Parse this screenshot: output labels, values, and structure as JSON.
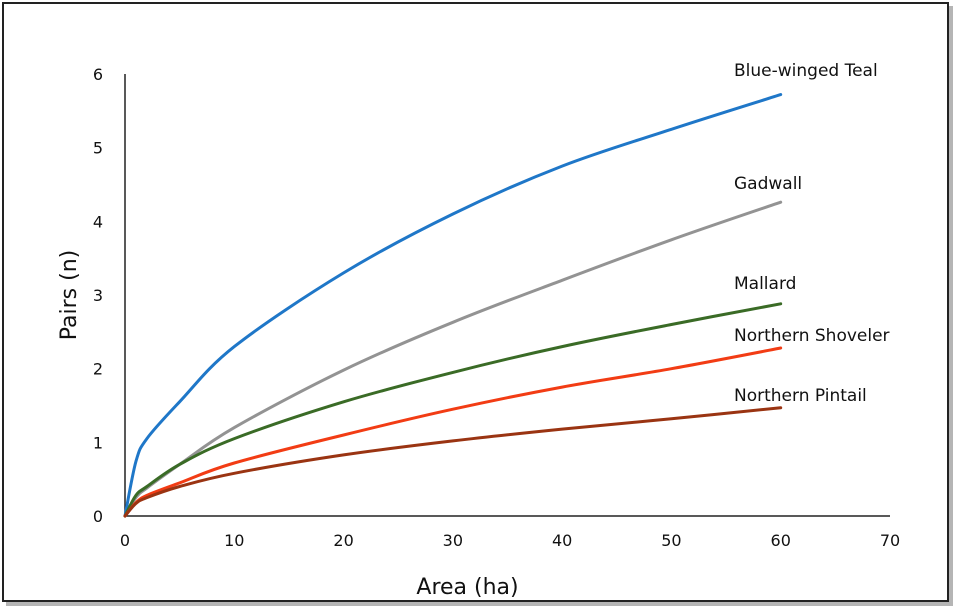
{
  "chart_data": {
    "type": "line",
    "title": "",
    "xlabel": "Area (ha)",
    "ylabel": "Pairs (n)",
    "xlim": [
      0,
      70
    ],
    "ylim": [
      0,
      6
    ],
    "xticks": [
      "0",
      "10",
      "20",
      "30",
      "40",
      "50",
      "60",
      "70"
    ],
    "yticks": [
      "0",
      "1",
      "2",
      "3",
      "4",
      "5",
      "6"
    ],
    "grid": false,
    "legend": "inline labels at line ends",
    "series": [
      {
        "name": "Blue-winged Teal",
        "color": "#1f77c8",
        "x": [
          0,
          1,
          2,
          5,
          10,
          20,
          30,
          40,
          50,
          60
        ],
        "y": [
          0,
          0.74,
          1.05,
          1.55,
          2.3,
          3.3,
          4.1,
          4.75,
          5.25,
          5.72
        ]
      },
      {
        "name": "Gadwall",
        "color": "#939393",
        "x": [
          0,
          1,
          2,
          5,
          10,
          20,
          30,
          40,
          50,
          60
        ],
        "y": [
          0,
          0.25,
          0.38,
          0.7,
          1.2,
          1.98,
          2.63,
          3.2,
          3.75,
          4.26
        ]
      },
      {
        "name": "Mallard",
        "color": "#3a6b26",
        "x": [
          0,
          1,
          2,
          5,
          10,
          20,
          30,
          40,
          50,
          60
        ],
        "y": [
          0,
          0.28,
          0.4,
          0.7,
          1.05,
          1.55,
          1.95,
          2.3,
          2.6,
          2.88
        ]
      },
      {
        "name": "Northern Shoveler",
        "color": "#f23c14",
        "x": [
          0,
          1,
          2,
          5,
          10,
          20,
          30,
          40,
          50,
          60
        ],
        "y": [
          0,
          0.18,
          0.28,
          0.45,
          0.72,
          1.1,
          1.45,
          1.75,
          2.0,
          2.28
        ]
      },
      {
        "name": "Northern Pintail",
        "color": "#9a3412",
        "x": [
          0,
          1,
          2,
          5,
          10,
          20,
          30,
          40,
          50,
          60
        ],
        "y": [
          0,
          0.17,
          0.25,
          0.4,
          0.58,
          0.83,
          1.02,
          1.18,
          1.32,
          1.47
        ]
      }
    ]
  }
}
